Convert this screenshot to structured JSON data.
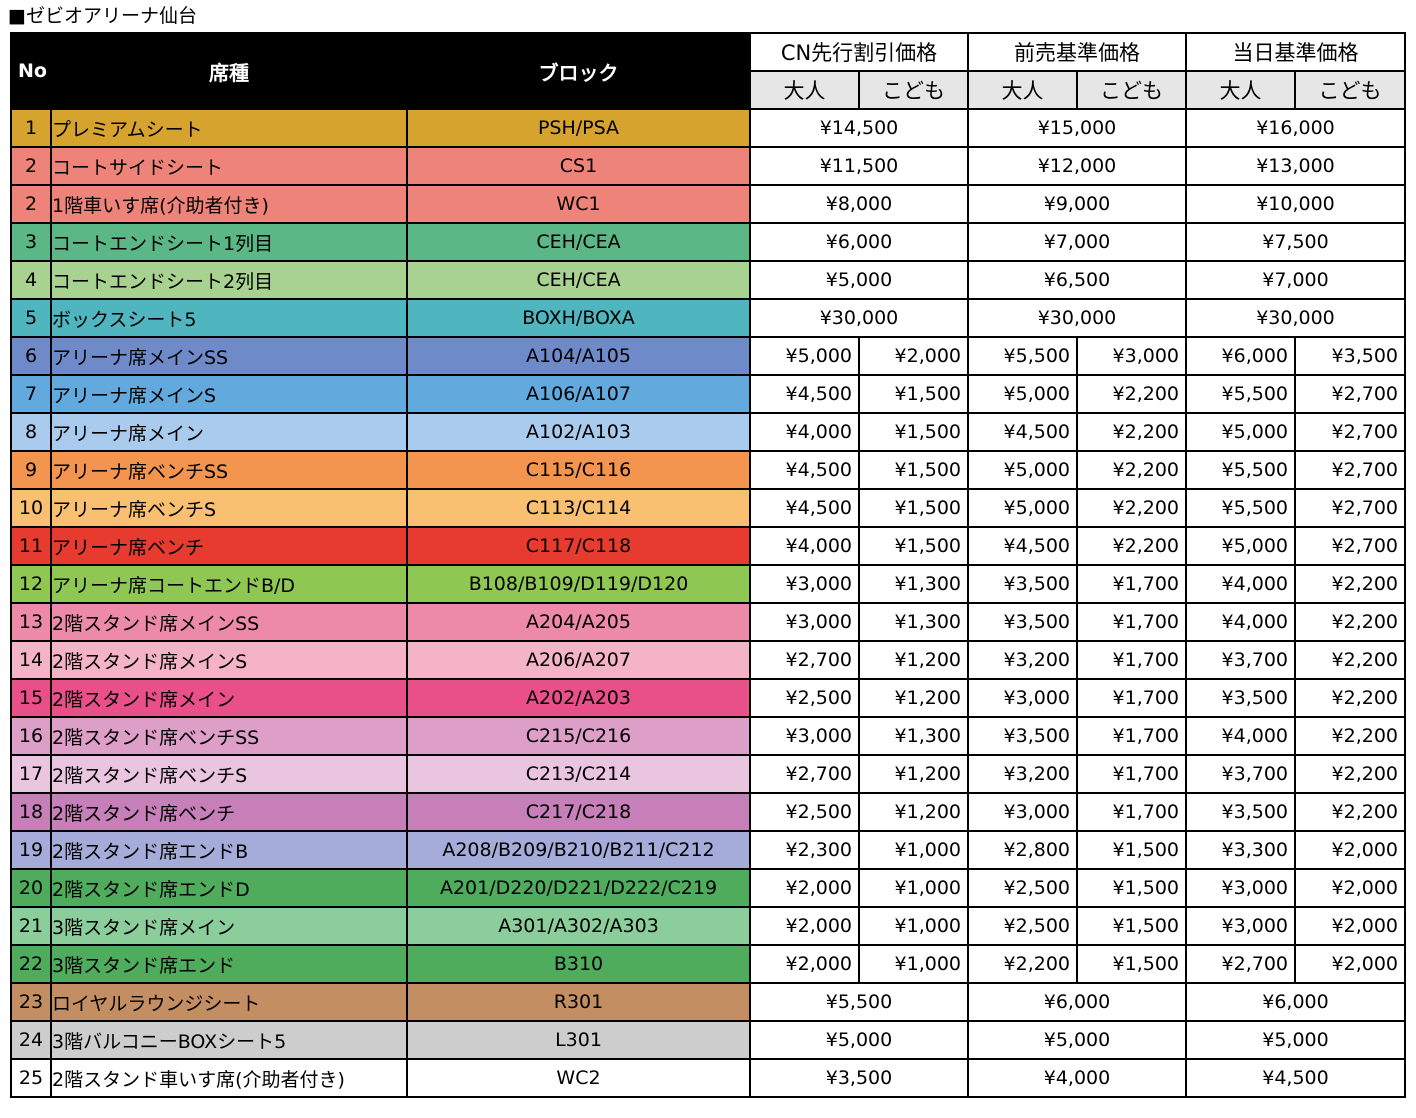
{
  "title": "■ゼビオアリーナ仙台",
  "headers": {
    "no": "No",
    "seat": "席種",
    "block": "ブロック",
    "groups": [
      "CN先行割引価格",
      "前売基準価格",
      "当日基準価格"
    ],
    "adult": "大人",
    "child": "こども"
  },
  "rows": [
    {
      "no": "1",
      "seat": "プレミアムシート",
      "block": "PSH/PSA",
      "color": "#d6a32f",
      "prices": [
        "¥14,500",
        "¥15,000",
        "¥16,000"
      ]
    },
    {
      "no": "2",
      "seat": "コートサイドシート",
      "block": "CS1",
      "color": "#ee8479",
      "prices": [
        "¥11,500",
        "¥12,000",
        "¥13,000"
      ]
    },
    {
      "no": "2",
      "seat": "1階車いす席(介助者付き)",
      "block": "WC1",
      "color": "#ee8479",
      "prices": [
        "¥8,000",
        "¥9,000",
        "¥10,000"
      ]
    },
    {
      "no": "3",
      "seat": "コートエンドシート1列目",
      "block": "CEH/CEA",
      "color": "#5cb787",
      "prices": [
        "¥6,000",
        "¥7,000",
        "¥7,500"
      ]
    },
    {
      "no": "4",
      "seat": "コートエンドシート2列目",
      "block": "CEH/CEA",
      "color": "#a8d28f",
      "prices": [
        "¥5,000",
        "¥6,500",
        "¥7,000"
      ]
    },
    {
      "no": "5",
      "seat": "ボックスシート5",
      "block": "BOXH/BOXA",
      "color": "#4fb6bf",
      "prices": [
        "¥30,000",
        "¥30,000",
        "¥30,000"
      ]
    },
    {
      "no": "6",
      "seat": "アリーナ席メインSS",
      "block": "A104/A105",
      "color": "#6e8ac8",
      "prices": [
        "¥5,000",
        "¥2,000",
        "¥5,500",
        "¥3,000",
        "¥6,000",
        "¥3,500"
      ]
    },
    {
      "no": "7",
      "seat": "アリーナ席メインS",
      "block": "A106/A107",
      "color": "#62a9de",
      "prices": [
        "¥4,500",
        "¥1,500",
        "¥5,000",
        "¥2,200",
        "¥5,500",
        "¥2,700"
      ]
    },
    {
      "no": "8",
      "seat": "アリーナ席メイン",
      "block": "A102/A103",
      "color": "#a9cbee",
      "prices": [
        "¥4,000",
        "¥1,500",
        "¥4,500",
        "¥2,200",
        "¥5,000",
        "¥2,700"
      ]
    },
    {
      "no": "9",
      "seat": "アリーナ席ベンチSS",
      "block": "C115/C116",
      "color": "#f3954f",
      "prices": [
        "¥4,500",
        "¥1,500",
        "¥5,000",
        "¥2,200",
        "¥5,500",
        "¥2,700"
      ]
    },
    {
      "no": "10",
      "seat": "アリーナ席ベンチS",
      "block": "C113/C114",
      "color": "#f8c070",
      "prices": [
        "¥4,500",
        "¥1,500",
        "¥5,000",
        "¥2,200",
        "¥5,500",
        "¥2,700"
      ]
    },
    {
      "no": "11",
      "seat": "アリーナ席ベンチ",
      "block": "C117/C118",
      "color": "#e73b2f",
      "prices": [
        "¥4,000",
        "¥1,500",
        "¥4,500",
        "¥2,200",
        "¥5,000",
        "¥2,700"
      ]
    },
    {
      "no": "12",
      "seat": "アリーナ席コートエンドB/D",
      "block": "B108/B109/D119/D120",
      "color": "#8ec751",
      "prices": [
        "¥3,000",
        "¥1,300",
        "¥3,500",
        "¥1,700",
        "¥4,000",
        "¥2,200"
      ]
    },
    {
      "no": "13",
      "seat": "2階スタンド席メインSS",
      "block": "A204/A205",
      "color": "#ec8aa7",
      "prices": [
        "¥3,000",
        "¥1,300",
        "¥3,500",
        "¥1,700",
        "¥4,000",
        "¥2,200"
      ]
    },
    {
      "no": "14",
      "seat": "2階スタンド席メインS",
      "block": "A206/A207",
      "color": "#f5b3c8",
      "prices": [
        "¥2,700",
        "¥1,200",
        "¥3,200",
        "¥1,700",
        "¥3,700",
        "¥2,200"
      ]
    },
    {
      "no": "15",
      "seat": "2階スタンド席メイン",
      "block": "A202/A203",
      "color": "#e9508a",
      "prices": [
        "¥2,500",
        "¥1,200",
        "¥3,000",
        "¥1,700",
        "¥3,500",
        "¥2,200"
      ]
    },
    {
      "no": "16",
      "seat": "2階スタンド席ベンチSS",
      "block": "C215/C216",
      "color": "#dd9ec8",
      "prices": [
        "¥3,000",
        "¥1,300",
        "¥3,500",
        "¥1,700",
        "¥4,000",
        "¥2,200"
      ]
    },
    {
      "no": "17",
      "seat": "2階スタンド席ベンチS",
      "block": "C213/C214",
      "color": "#eac5e0",
      "prices": [
        "¥2,700",
        "¥1,200",
        "¥3,200",
        "¥1,700",
        "¥3,700",
        "¥2,200"
      ]
    },
    {
      "no": "18",
      "seat": "2階スタンド席ベンチ",
      "block": "C217/C218",
      "color": "#c67fb8",
      "prices": [
        "¥2,500",
        "¥1,200",
        "¥3,000",
        "¥1,700",
        "¥3,500",
        "¥2,200"
      ]
    },
    {
      "no": "19",
      "seat": "2階スタンド席エンドB",
      "block": "A208/B209/B210/B211/C212",
      "color": "#a5acd9",
      "prices": [
        "¥2,300",
        "¥1,000",
        "¥2,800",
        "¥1,500",
        "¥3,300",
        "¥2,000"
      ]
    },
    {
      "no": "20",
      "seat": "2階スタンド席エンドD",
      "block": "A201/D220/D221/D222/C219",
      "color": "#4fac5c",
      "prices": [
        "¥2,000",
        "¥1,000",
        "¥2,500",
        "¥1,500",
        "¥3,000",
        "¥2,000"
      ]
    },
    {
      "no": "21",
      "seat": "3階スタンド席メイン",
      "block": "A301/A302/A303",
      "color": "#8ccd9c",
      "prices": [
        "¥2,000",
        "¥1,000",
        "¥2,500",
        "¥1,500",
        "¥3,000",
        "¥2,000"
      ]
    },
    {
      "no": "22",
      "seat": "3階スタンド席エンド",
      "block": "B310",
      "color": "#4fac5c",
      "prices": [
        "¥2,000",
        "¥1,000",
        "¥2,200",
        "¥1,500",
        "¥2,700",
        "¥2,000"
      ]
    },
    {
      "no": "23",
      "seat": "ロイヤルラウンジシート",
      "block": "R301",
      "color": "#c48e63",
      "prices": [
        "¥5,500",
        "¥6,000",
        "¥6,000"
      ]
    },
    {
      "no": "24",
      "seat": "3階バルコニーBOXシート5",
      "block": "L301",
      "color": "#cdcdcd",
      "prices": [
        "¥5,000",
        "¥5,000",
        "¥5,000"
      ]
    },
    {
      "no": "25",
      "seat": "2階スタンド車いす席(介助者付き)",
      "block": "WC2",
      "color": "#ffffff",
      "prices": [
        "¥3,500",
        "¥4,000",
        "¥4,500"
      ]
    }
  ]
}
